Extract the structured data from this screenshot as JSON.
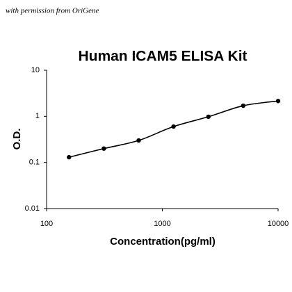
{
  "chart_data": {
    "type": "line",
    "credit": "with permission from OriGene",
    "title": "Human ICAM5 ELISA Kit",
    "x_label": "Concentration(pg/ml)",
    "y_label": "O.D.",
    "x": [
      156.25,
      312.5,
      625,
      1250,
      2500,
      5000,
      10000
    ],
    "series": [
      {
        "name": "Standard curve",
        "color": "#000000",
        "values": [
          0.13,
          0.2,
          0.3,
          0.6,
          0.98,
          1.7,
          2.15
        ]
      }
    ],
    "xlog": true,
    "ylog": true,
    "xlim": [
      100,
      10000
    ],
    "xticks": [
      100,
      1000,
      10000
    ],
    "ylim": [
      0.01,
      10
    ],
    "yticks": [
      0.01,
      0.1,
      1,
      10
    ]
  }
}
